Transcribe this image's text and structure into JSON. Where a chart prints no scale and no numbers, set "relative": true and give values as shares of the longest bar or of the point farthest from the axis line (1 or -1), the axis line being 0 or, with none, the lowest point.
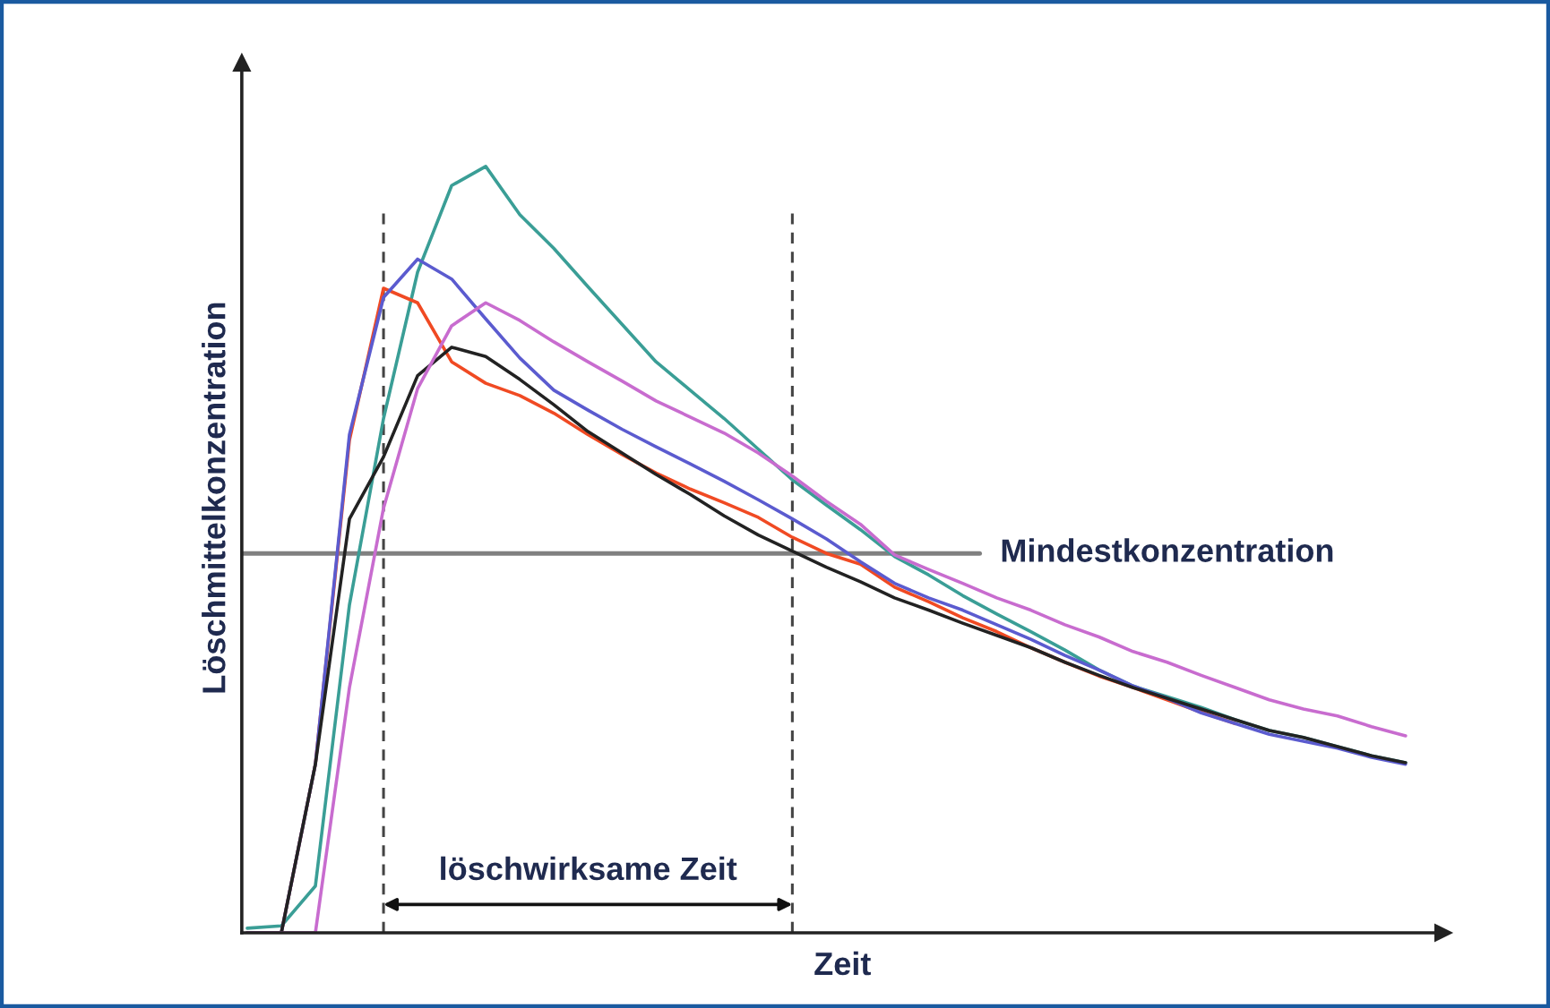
{
  "chart_data": {
    "type": "line",
    "relative": true,
    "xlabel": "Zeit",
    "ylabel": "Löschmittelkonzentration",
    "annotations": [
      "löschwirksame Zeit"
    ],
    "ref_lines": [
      {
        "axis": "y",
        "value": 0.495,
        "label": "Mindestkonzentration",
        "color": "#808080",
        "line_style": "solid"
      }
    ],
    "line_style": "solid",
    "categories": [
      null,
      null,
      null,
      null,
      null,
      null,
      null,
      null,
      null,
      null,
      null,
      null,
      null,
      null,
      null,
      null,
      null,
      null,
      null,
      null,
      null,
      null,
      null,
      null,
      null,
      null,
      null,
      null,
      null,
      null,
      null,
      null,
      null,
      null,
      null
    ],
    "series": [
      {
        "color": "#3a9e96",
        "values": [
          0.006,
          0.009,
          0.061,
          0.428,
          0.671,
          0.862,
          0.975,
          1,
          0.937,
          0.893,
          0.843,
          0.794,
          0.745,
          0.708,
          0.671,
          0.631,
          0.591,
          0.558,
          0.526,
          0.491,
          0.467,
          0.44,
          0.416,
          0.393,
          0.369,
          0.343,
          0.322,
          0.308,
          0.294,
          0.278,
          0.264,
          0.255,
          0.243,
          0.231,
          0.222
        ]
      },
      {
        "color": "#f04a23",
        "values": [
          0,
          0,
          0.22,
          0.643,
          0.841,
          0.822,
          0.745,
          0.717,
          0.701,
          0.678,
          0.65,
          0.624,
          0.6,
          0.579,
          0.561,
          0.542,
          0.516,
          0.495,
          0.481,
          0.451,
          0.432,
          0.411,
          0.393,
          0.372,
          0.353,
          0.335,
          0.32,
          0.304,
          0.288,
          0.273,
          null,
          null,
          null,
          null,
          null
        ]
      },
      {
        "color": "#5b5bcf",
        "values": [
          0,
          0,
          0.22,
          0.65,
          0.829,
          0.879,
          0.853,
          0.801,
          0.75,
          0.708,
          0.682,
          0.657,
          0.634,
          0.612,
          0.589,
          0.565,
          0.54,
          0.514,
          0.484,
          0.456,
          0.437,
          0.421,
          0.402,
          0.383,
          0.362,
          0.343,
          0.322,
          0.306,
          0.287,
          0.273,
          0.259,
          0.25,
          0.241,
          0.229,
          0.22
        ]
      },
      {
        "color": "#222222",
        "values": [
          0,
          0,
          0.22,
          0.54,
          0.621,
          0.727,
          0.764,
          0.752,
          0.722,
          0.689,
          0.654,
          0.626,
          0.598,
          0.572,
          0.544,
          0.519,
          0.498,
          0.477,
          0.458,
          0.437,
          0.421,
          0.404,
          0.388,
          0.372,
          0.353,
          0.336,
          0.32,
          0.306,
          0.292,
          0.278,
          0.264,
          0.255,
          0.243,
          0.231,
          0.222
        ]
      },
      {
        "color": "#c86ccf",
        "values": [
          0,
          0,
          0,
          0.32,
          0.554,
          0.71,
          0.792,
          0.822,
          0.799,
          0.771,
          0.745,
          0.72,
          0.694,
          0.673,
          0.652,
          0.626,
          0.596,
          0.563,
          0.533,
          0.493,
          0.474,
          0.456,
          0.437,
          0.421,
          0.402,
          0.386,
          0.367,
          0.353,
          0.336,
          0.32,
          0.304,
          0.292,
          0.283,
          0.269,
          0.257
        ]
      }
    ]
  }
}
